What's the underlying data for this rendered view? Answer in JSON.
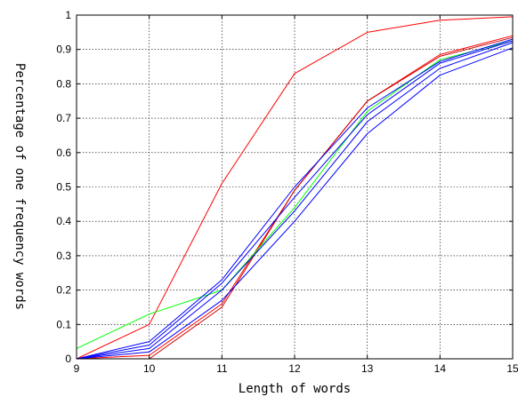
{
  "chart_data": {
    "type": "line",
    "title": "",
    "xlabel": "Length of words",
    "ylabel": "Percentage of one frequency words",
    "xlim": [
      9,
      15
    ],
    "ylim": [
      0,
      1
    ],
    "x_ticks": [
      9,
      10,
      11,
      12,
      13,
      14,
      15
    ],
    "y_ticks": [
      0,
      0.1,
      0.2,
      0.3,
      0.4,
      0.5,
      0.6,
      0.7,
      0.8,
      0.9,
      1
    ],
    "grid": true,
    "legend": "none",
    "x": [
      9,
      10,
      11,
      12,
      13,
      14,
      15
    ],
    "series": [
      {
        "color": "#ff0000",
        "values": [
          0.0,
          0.1,
          0.51,
          0.83,
          0.95,
          0.985,
          0.995
        ]
      },
      {
        "color": "#ff0000",
        "values": [
          0.0,
          0.01,
          0.16,
          0.49,
          0.75,
          0.885,
          0.94
        ]
      },
      {
        "color": "#cc0000",
        "values": [
          0.0,
          0.0,
          0.15,
          0.49,
          0.75,
          0.88,
          0.935
        ]
      },
      {
        "color": "#00ff00",
        "values": [
          0.03,
          0.13,
          0.2,
          0.44,
          0.72,
          0.87,
          0.925
        ]
      },
      {
        "color": "#0000ff",
        "values": [
          0.0,
          0.05,
          0.23,
          0.5,
          0.73,
          0.865,
          0.93
        ]
      },
      {
        "color": "#0000ff",
        "values": [
          0.0,
          0.04,
          0.22,
          0.47,
          0.71,
          0.86,
          0.925
        ]
      },
      {
        "color": "#0000ff",
        "values": [
          0.0,
          0.03,
          0.2,
          0.43,
          0.69,
          0.845,
          0.92
        ]
      },
      {
        "color": "#0000ff",
        "values": [
          0.0,
          0.02,
          0.17,
          0.4,
          0.655,
          0.825,
          0.905
        ]
      }
    ]
  }
}
